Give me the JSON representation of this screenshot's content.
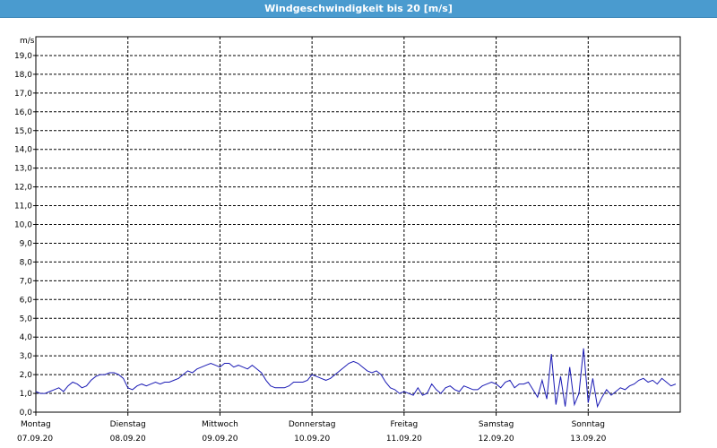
{
  "window": {
    "title": "Windgeschwindigkeit bis 20 [m/s]"
  },
  "colors": {
    "titlebar": "#4a9bcf",
    "line": "#1a1ab4",
    "grid": "#000000"
  },
  "chart_data": {
    "type": "line",
    "title": "Windgeschwindigkeit bis 20 [m/s]",
    "ylabel": "m/s",
    "xlabel": "",
    "ylim": [
      0,
      20
    ],
    "y_ticks": [
      "0,0",
      "1,0",
      "2,0",
      "3,0",
      "4,0",
      "5,0",
      "6,0",
      "7,0",
      "8,0",
      "9,0",
      "10,0",
      "11,0",
      "12,0",
      "13,0",
      "14,0",
      "15,0",
      "16,0",
      "17,0",
      "18,0",
      "19,0"
    ],
    "x_range_days": [
      0,
      7
    ],
    "x_ticks": [
      {
        "day": "Montag",
        "date": "07.09.20"
      },
      {
        "day": "Dienstag",
        "date": "08.09.20"
      },
      {
        "day": "Mittwoch",
        "date": "09.09.20"
      },
      {
        "day": "Donnerstag",
        "date": "10.09.20"
      },
      {
        "day": "Freitag",
        "date": "11.09.20"
      },
      {
        "day": "Samstag",
        "date": "12.09.20"
      },
      {
        "day": "Sonntag",
        "date": "13.09.20"
      }
    ],
    "grid": true,
    "series": [
      {
        "points": [
          [
            0.0,
            1.1
          ],
          [
            0.05,
            1.0
          ],
          [
            0.1,
            1.0
          ],
          [
            0.15,
            1.1
          ],
          [
            0.2,
            1.2
          ],
          [
            0.25,
            1.3
          ],
          [
            0.3,
            1.1
          ],
          [
            0.35,
            1.4
          ],
          [
            0.4,
            1.6
          ],
          [
            0.45,
            1.5
          ],
          [
            0.5,
            1.3
          ],
          [
            0.55,
            1.4
          ],
          [
            0.6,
            1.7
          ],
          [
            0.65,
            1.9
          ],
          [
            0.7,
            2.0
          ],
          [
            0.75,
            2.0
          ],
          [
            0.8,
            2.1
          ],
          [
            0.85,
            2.1
          ],
          [
            0.9,
            2.0
          ],
          [
            0.95,
            1.8
          ],
          [
            1.0,
            1.3
          ],
          [
            1.05,
            1.2
          ],
          [
            1.1,
            1.4
          ],
          [
            1.15,
            1.5
          ],
          [
            1.2,
            1.4
          ],
          [
            1.25,
            1.5
          ],
          [
            1.3,
            1.6
          ],
          [
            1.35,
            1.5
          ],
          [
            1.4,
            1.6
          ],
          [
            1.45,
            1.6
          ],
          [
            1.5,
            1.7
          ],
          [
            1.55,
            1.8
          ],
          [
            1.6,
            2.0
          ],
          [
            1.65,
            2.2
          ],
          [
            1.7,
            2.1
          ],
          [
            1.75,
            2.3
          ],
          [
            1.8,
            2.4
          ],
          [
            1.85,
            2.5
          ],
          [
            1.9,
            2.6
          ],
          [
            1.95,
            2.5
          ],
          [
            2.0,
            2.4
          ],
          [
            2.05,
            2.6
          ],
          [
            2.1,
            2.6
          ],
          [
            2.15,
            2.4
          ],
          [
            2.2,
            2.5
          ],
          [
            2.25,
            2.4
          ],
          [
            2.3,
            2.3
          ],
          [
            2.35,
            2.5
          ],
          [
            2.4,
            2.3
          ],
          [
            2.45,
            2.1
          ],
          [
            2.5,
            1.7
          ],
          [
            2.55,
            1.4
          ],
          [
            2.6,
            1.3
          ],
          [
            2.65,
            1.3
          ],
          [
            2.7,
            1.3
          ],
          [
            2.75,
            1.4
          ],
          [
            2.8,
            1.6
          ],
          [
            2.85,
            1.6
          ],
          [
            2.9,
            1.6
          ],
          [
            2.95,
            1.7
          ],
          [
            3.0,
            2.0
          ],
          [
            3.05,
            1.9
          ],
          [
            3.1,
            1.8
          ],
          [
            3.15,
            1.7
          ],
          [
            3.2,
            1.8
          ],
          [
            3.25,
            2.0
          ],
          [
            3.3,
            2.2
          ],
          [
            3.35,
            2.4
          ],
          [
            3.4,
            2.6
          ],
          [
            3.45,
            2.7
          ],
          [
            3.5,
            2.6
          ],
          [
            3.55,
            2.4
          ],
          [
            3.6,
            2.2
          ],
          [
            3.65,
            2.1
          ],
          [
            3.7,
            2.2
          ],
          [
            3.75,
            2.0
          ],
          [
            3.8,
            1.6
          ],
          [
            3.85,
            1.3
          ],
          [
            3.9,
            1.2
          ],
          [
            3.95,
            1.0
          ],
          [
            4.0,
            1.1
          ],
          [
            4.05,
            1.0
          ],
          [
            4.1,
            0.9
          ],
          [
            4.15,
            1.3
          ],
          [
            4.2,
            0.9
          ],
          [
            4.25,
            1.0
          ],
          [
            4.3,
            1.5
          ],
          [
            4.35,
            1.2
          ],
          [
            4.4,
            1.0
          ],
          [
            4.45,
            1.3
          ],
          [
            4.5,
            1.4
          ],
          [
            4.55,
            1.2
          ],
          [
            4.6,
            1.1
          ],
          [
            4.65,
            1.4
          ],
          [
            4.7,
            1.3
          ],
          [
            4.75,
            1.2
          ],
          [
            4.8,
            1.2
          ],
          [
            4.85,
            1.4
          ],
          [
            4.9,
            1.5
          ],
          [
            4.95,
            1.6
          ],
          [
            5.0,
            1.5
          ],
          [
            5.05,
            1.3
          ],
          [
            5.1,
            1.6
          ],
          [
            5.15,
            1.7
          ],
          [
            5.2,
            1.3
          ],
          [
            5.25,
            1.5
          ],
          [
            5.3,
            1.5
          ],
          [
            5.35,
            1.6
          ],
          [
            5.4,
            1.2
          ],
          [
            5.45,
            0.8
          ],
          [
            5.5,
            1.7
          ],
          [
            5.55,
            0.7
          ],
          [
            5.6,
            3.1
          ],
          [
            5.65,
            0.4
          ],
          [
            5.7,
            1.9
          ],
          [
            5.75,
            0.3
          ],
          [
            5.8,
            2.4
          ],
          [
            5.85,
            0.4
          ],
          [
            5.9,
            1.0
          ],
          [
            5.95,
            3.4
          ],
          [
            6.0,
            0.5
          ],
          [
            6.05,
            1.8
          ],
          [
            6.1,
            0.3
          ],
          [
            6.15,
            0.8
          ],
          [
            6.2,
            1.2
          ],
          [
            6.25,
            0.9
          ],
          [
            6.3,
            1.1
          ],
          [
            6.35,
            1.3
          ],
          [
            6.4,
            1.2
          ],
          [
            6.45,
            1.4
          ],
          [
            6.5,
            1.5
          ],
          [
            6.55,
            1.7
          ],
          [
            6.6,
            1.8
          ],
          [
            6.65,
            1.6
          ],
          [
            6.7,
            1.7
          ],
          [
            6.75,
            1.5
          ],
          [
            6.8,
            1.8
          ],
          [
            6.85,
            1.6
          ],
          [
            6.9,
            1.4
          ],
          [
            6.95,
            1.5
          ]
        ]
      }
    ]
  }
}
